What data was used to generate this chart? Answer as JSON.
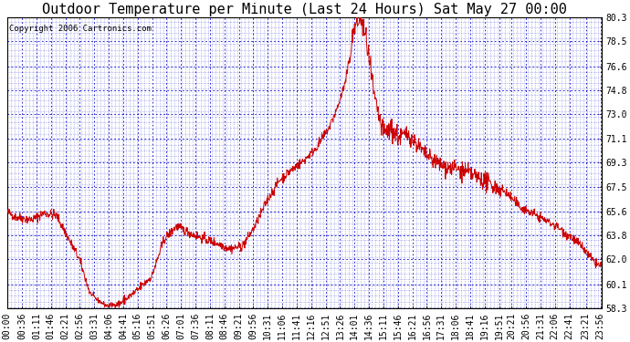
{
  "title": "Outdoor Temperature per Minute (Last 24 Hours) Sat May 27 00:00",
  "copyright_text": "Copyright 2006 Cartronics.com",
  "bg_color": "#ffffff",
  "plot_bg_color": "#ffffff",
  "line_color": "#cc0000",
  "grid_color": "#0000cc",
  "yticks": [
    58.3,
    60.1,
    62.0,
    63.8,
    65.6,
    67.5,
    69.3,
    71.1,
    73.0,
    74.8,
    76.6,
    78.5,
    80.3
  ],
  "ymin": 58.3,
  "ymax": 80.3,
  "xtick_labels": [
    "00:00",
    "00:36",
    "01:11",
    "01:46",
    "02:21",
    "02:56",
    "03:31",
    "04:06",
    "04:41",
    "05:16",
    "05:51",
    "06:26",
    "07:01",
    "07:36",
    "08:11",
    "08:46",
    "09:21",
    "09:56",
    "10:31",
    "11:06",
    "11:41",
    "12:16",
    "12:51",
    "13:26",
    "14:01",
    "14:36",
    "15:11",
    "15:46",
    "16:21",
    "16:56",
    "17:31",
    "18:06",
    "18:41",
    "19:16",
    "19:51",
    "20:21",
    "20:56",
    "21:31",
    "22:06",
    "22:41",
    "23:21",
    "23:56"
  ],
  "xtick_positions": [
    0,
    36,
    71,
    106,
    141,
    176,
    211,
    246,
    281,
    316,
    351,
    386,
    421,
    456,
    491,
    526,
    561,
    596,
    631,
    666,
    701,
    736,
    771,
    806,
    841,
    876,
    911,
    946,
    981,
    1016,
    1051,
    1086,
    1121,
    1156,
    1191,
    1221,
    1256,
    1291,
    1326,
    1361,
    1401,
    1436
  ],
  "title_fontsize": 11,
  "tick_fontsize": 7,
  "copyright_fontsize": 6.5,
  "keypoints_t": [
    0,
    20,
    60,
    90,
    120,
    150,
    175,
    200,
    215,
    240,
    270,
    310,
    350,
    380,
    410,
    455,
    480,
    510,
    540,
    570,
    600,
    630,
    660,
    690,
    720,
    750,
    780,
    800,
    820,
    835,
    841,
    855,
    870,
    890,
    910,
    930,
    950,
    970,
    990,
    1010,
    1030,
    1060,
    1090,
    1120,
    1150,
    1180,
    1210,
    1240,
    1270,
    1300,
    1330,
    1360,
    1390,
    1420,
    1436
  ],
  "keypoints_v": [
    65.6,
    65.2,
    65.0,
    65.5,
    65.3,
    63.5,
    62.0,
    59.5,
    59.0,
    58.5,
    58.6,
    59.5,
    60.7,
    63.5,
    64.5,
    63.8,
    63.5,
    63.2,
    62.8,
    63.0,
    64.5,
    66.5,
    68.0,
    68.8,
    69.5,
    70.5,
    72.0,
    73.5,
    75.5,
    78.5,
    79.5,
    80.3,
    78.5,
    74.0,
    71.5,
    71.8,
    71.2,
    71.5,
    70.8,
    70.0,
    69.5,
    69.0,
    68.8,
    68.5,
    68.0,
    67.5,
    67.0,
    66.0,
    65.5,
    65.0,
    64.5,
    63.8,
    63.0,
    61.8,
    61.5
  ]
}
